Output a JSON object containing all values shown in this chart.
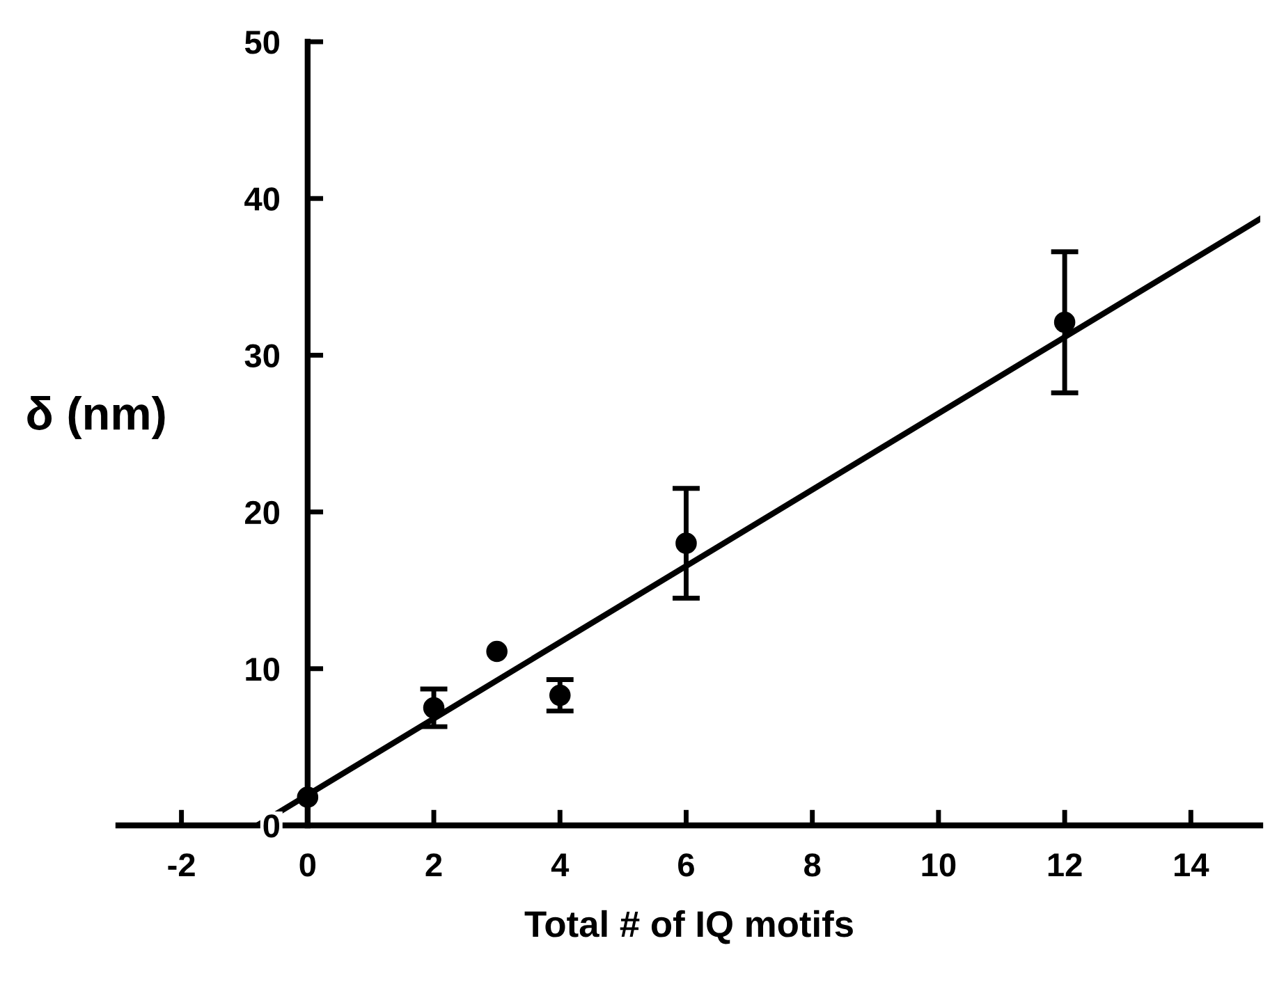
{
  "chart_data": {
    "type": "scatter",
    "xlabel": "Total # of IQ motifs",
    "ylabel": "δ (nm)",
    "xlim": [
      -3,
      15.1
    ],
    "ylim": [
      0,
      50
    ],
    "xticks": [
      -2,
      0,
      2,
      4,
      6,
      8,
      10,
      12,
      14
    ],
    "yticks": [
      0,
      10,
      20,
      30,
      40,
      50
    ],
    "grid": false,
    "legend": false,
    "series": [
      {
        "marker": "circle",
        "color": "#000000",
        "x": [
          0,
          2,
          3,
          4,
          6,
          12
        ],
        "values": [
          1.8,
          7.5,
          11.1,
          8.3,
          18.0,
          32.1
        ],
        "errors": [
          null,
          1.2,
          null,
          1.0,
          3.5,
          4.5
        ]
      },
      {
        "type": "line",
        "color": "#000000",
        "x": [
          -0.8,
          15.1
        ],
        "values": [
          0,
          38.7
        ],
        "line_style": "solid"
      }
    ]
  }
}
